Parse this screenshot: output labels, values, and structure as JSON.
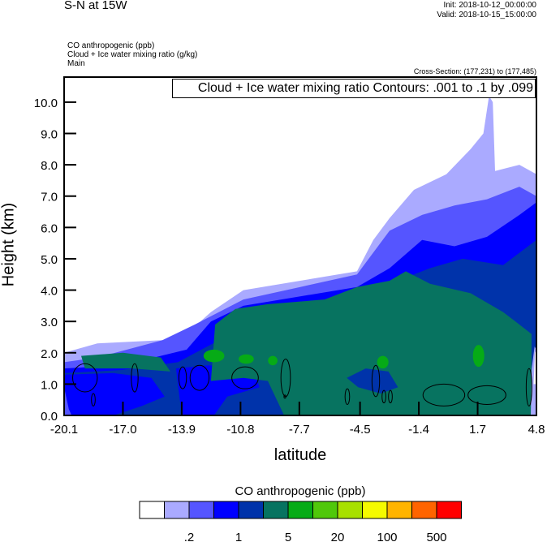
{
  "header": {
    "title": "S-N at 15W",
    "init": "Init: 2018-10-12_00:00:00",
    "valid": "Valid: 2018-10-15_15:00:00",
    "fields": [
      "CO anthropogenic   (ppb)",
      "Cloud + Ice water mixing ratio   (g/kg)",
      "Main"
    ],
    "cross_section": "Cross-Section: (177,231) to (177,485)"
  },
  "chart_data": {
    "type": "heatmap",
    "subtype": "filled-contour cross-section with line contours",
    "contour_label": "Cloud + Ice water mixing ratio Contours: .001 to .1 by .099",
    "xlabel": "latitude",
    "ylabel": "Height (km)",
    "xlim": [
      -20.1,
      4.8
    ],
    "ylim": [
      0,
      10.8
    ],
    "xticks": [
      "-20.1",
      "-17.0",
      "-13.9",
      "-10.8",
      "-7.7",
      "-4.5",
      "-1.4",
      "1.7",
      "4.8"
    ],
    "xtick_values": [
      -20.1,
      -17.0,
      -13.9,
      -10.8,
      -7.7,
      -4.5,
      -1.4,
      1.7,
      4.8
    ],
    "yticks": [
      "0.0",
      "1.0",
      "2.0",
      "3.0",
      "4.0",
      "5.0",
      "6.0",
      "7.0",
      "8.0",
      "9.0",
      "10.0"
    ],
    "ytick_values": [
      0,
      1,
      2,
      3,
      4,
      5,
      6,
      7,
      8,
      9,
      10
    ],
    "colorbar": {
      "title": "CO anthropogenic  (ppb)",
      "colors": [
        "#ffffff",
        "#aaaaff",
        "#5555ff",
        "#0000ff",
        "#0033aa",
        "#077360",
        "#06ab16",
        "#50c80a",
        "#a8e000",
        "#f5fa00",
        "#ffb400",
        "#ff6400",
        "#ff0000"
      ],
      "labels": [
        ".2",
        "1",
        "5",
        "20",
        "100",
        "500"
      ],
      "label_boundary_index": [
        2,
        4,
        6,
        8,
        10,
        12
      ]
    },
    "bands": [
      {
        "name": "co-band-lavender",
        "color": "#aaaaff",
        "top": [
          [
            -20.1,
            2.0
          ],
          [
            -18.35,
            2.3
          ],
          [
            -14.92,
            2.4
          ],
          [
            -13.64,
            2.6
          ],
          [
            -12.36,
            3.3
          ],
          [
            -10.65,
            4.0
          ],
          [
            -7.65,
            4.3
          ],
          [
            -4.66,
            4.6
          ],
          [
            -3.8,
            5.6
          ],
          [
            -2.94,
            6.3
          ],
          [
            -1.66,
            7.2
          ],
          [
            0.05,
            7.7
          ],
          [
            1.33,
            8.5
          ],
          [
            2.0,
            9.0
          ],
          [
            2.3,
            10.2
          ],
          [
            2.5,
            10.0
          ],
          [
            2.62,
            7.8
          ],
          [
            3.9,
            8.0
          ],
          [
            4.8,
            7.7
          ]
        ]
      },
      {
        "name": "co-band-medium-blue",
        "color": "#5555ff",
        "top": [
          [
            -20.1,
            1.7
          ],
          [
            -18.35,
            1.85
          ],
          [
            -14.92,
            2.4
          ],
          [
            -13.21,
            2.9
          ],
          [
            -10.65,
            3.7
          ],
          [
            -7.65,
            4.1
          ],
          [
            -4.66,
            4.5
          ],
          [
            -2.94,
            5.9
          ],
          [
            -1.23,
            6.4
          ],
          [
            0.48,
            6.7
          ],
          [
            2.19,
            6.9
          ],
          [
            3.9,
            7.3
          ],
          [
            4.8,
            7.0
          ]
        ]
      },
      {
        "name": "co-band-blue",
        "color": "#0000ff",
        "top": [
          [
            -20.1,
            1.5
          ],
          [
            -17.06,
            1.6
          ],
          [
            -13.64,
            2.1
          ],
          [
            -12.36,
            3.0
          ],
          [
            -10.65,
            3.5
          ],
          [
            -7.65,
            3.8
          ],
          [
            -4.66,
            4.1
          ],
          [
            -2.94,
            4.7
          ],
          [
            -1.23,
            5.6
          ],
          [
            0.48,
            5.4
          ],
          [
            2.19,
            5.7
          ],
          [
            3.9,
            6.4
          ],
          [
            4.8,
            6.8
          ]
        ]
      },
      {
        "name": "co-band-dark-blue",
        "color": "#0033aa",
        "top": [
          [
            -20.1,
            1.35
          ],
          [
            -17.06,
            1.45
          ],
          [
            -14.1,
            1.7
          ],
          [
            -11.93,
            2.4
          ],
          [
            -10.65,
            2.9
          ],
          [
            -7.65,
            3.4
          ],
          [
            -4.66,
            3.8
          ],
          [
            -2.94,
            4.2
          ],
          [
            -0.81,
            4.7
          ],
          [
            0.91,
            5.0
          ],
          [
            3.04,
            4.8
          ],
          [
            4.8,
            5.6
          ]
        ]
      }
    ],
    "patches": [
      {
        "name": "co-patch-blue-left",
        "color": "#0000ff",
        "points": [
          [
            -20.1,
            0
          ],
          [
            -20.1,
            1.3
          ],
          [
            -17.5,
            1.35
          ],
          [
            -15.5,
            1.2
          ],
          [
            -14.8,
            0.6
          ],
          [
            -16.0,
            0.3
          ],
          [
            -17.5,
            0
          ],
          [
            -18.5,
            0
          ]
        ]
      },
      {
        "name": "co-patch-blue-mid",
        "color": "#0000ff",
        "points": [
          [
            -13.9,
            0
          ],
          [
            -14.2,
            1.5
          ],
          [
            -12.5,
            1.6
          ],
          [
            -10.2,
            1.55
          ],
          [
            -9.8,
            0.9
          ],
          [
            -11.5,
            0.6
          ],
          [
            -12.2,
            0
          ]
        ]
      },
      {
        "name": "co-patch-lavender-left-edge",
        "color": "#5555ff",
        "points": [
          [
            -20.1,
            0
          ],
          [
            -20.1,
            0.9
          ],
          [
            -19.85,
            0.2
          ],
          [
            -19.7,
            0
          ]
        ]
      },
      {
        "name": "co-patch-teal-main",
        "color": "#077360",
        "points": [
          [
            -12.36,
            1.1
          ],
          [
            -12.14,
            2.9
          ],
          [
            -11.07,
            3.4
          ],
          [
            -9.36,
            3.55
          ],
          [
            -6.37,
            3.7
          ],
          [
            -4.66,
            4.1
          ],
          [
            -2.94,
            4.3
          ],
          [
            -2.09,
            4.6
          ],
          [
            -0.81,
            4.2
          ],
          [
            1.33,
            3.9
          ],
          [
            3.04,
            3.3
          ],
          [
            3.9,
            2.9
          ],
          [
            4.54,
            2.6
          ],
          [
            4.54,
            0
          ],
          [
            -8.5,
            0
          ],
          [
            -9.36,
            1.1
          ],
          [
            -10.65,
            1.2
          ]
        ]
      },
      {
        "name": "co-patch-teal-left",
        "color": "#077360",
        "points": [
          [
            -19.2,
            1.9
          ],
          [
            -17.0,
            2.0
          ],
          [
            -15.0,
            1.85
          ],
          [
            -14.5,
            1.4
          ],
          [
            -16.5,
            1.5
          ],
          [
            -19.0,
            1.5
          ]
        ]
      },
      {
        "name": "co-patch-darkblue-inner",
        "color": "#0033aa",
        "points": [
          [
            -5.2,
            1.2
          ],
          [
            -4.2,
            1.5
          ],
          [
            -3.0,
            1.4
          ],
          [
            -2.5,
            0.9
          ],
          [
            -3.4,
            0.7
          ],
          [
            -4.6,
            0.9
          ]
        ]
      },
      {
        "name": "co-patch-lavender-right-edge",
        "color": "#aaaaff",
        "points": [
          [
            4.5,
            0
          ],
          [
            4.55,
            1.5
          ],
          [
            4.7,
            2.2
          ],
          [
            4.8,
            2.1
          ],
          [
            4.8,
            0
          ]
        ]
      },
      {
        "name": "co-patch-white-right-edge",
        "color": "#ffffff",
        "points": [
          [
            4.65,
            1.0
          ],
          [
            4.72,
            2.0
          ],
          [
            4.8,
            2.1
          ],
          [
            4.8,
            1.0
          ]
        ]
      }
    ],
    "green_blobs": [
      [
        -12.2,
        1.9,
        0.55,
        0.2
      ],
      [
        -10.5,
        1.8,
        0.4,
        0.15
      ],
      [
        -9.1,
        1.75,
        0.25,
        0.15
      ],
      [
        -3.3,
        1.7,
        0.3,
        0.2
      ],
      [
        1.75,
        1.9,
        0.3,
        0.35
      ]
    ],
    "cloud_contours": [
      [
        -19.0,
        1.2,
        0.65,
        0.45
      ],
      [
        -16.38,
        1.2,
        0.18,
        0.45
      ],
      [
        -13.85,
        1.2,
        0.2,
        0.35
      ],
      [
        -12.96,
        1.2,
        0.5,
        0.4
      ],
      [
        -10.56,
        1.2,
        0.7,
        0.35
      ],
      [
        -8.42,
        1.2,
        0.25,
        0.6
      ],
      [
        -8.46,
        0.6,
        0.05,
        0.05
      ],
      [
        -18.56,
        0.5,
        0.1,
        0.2
      ],
      [
        -5.17,
        0.6,
        0.12,
        0.25
      ],
      [
        -3.67,
        1.1,
        0.2,
        0.5
      ],
      [
        -3.24,
        0.6,
        0.1,
        0.2
      ],
      [
        -2.9,
        0.6,
        0.1,
        0.2
      ],
      [
        -0.08,
        0.65,
        1.1,
        0.35
      ],
      [
        2.19,
        0.65,
        1.0,
        0.3
      ],
      [
        4.41,
        0.9,
        0.15,
        0.6
      ]
    ]
  }
}
